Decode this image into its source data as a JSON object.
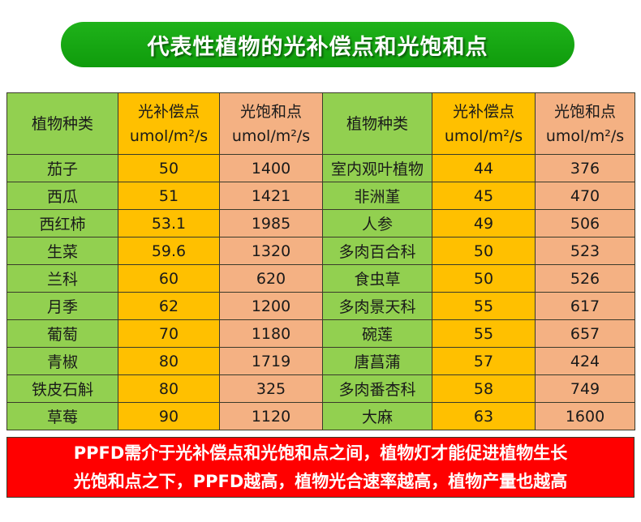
{
  "title": "代表性植物的光补偿点和光饱和点",
  "headers": {
    "plant": "植物种类",
    "compensation": "光补偿点",
    "saturation": "光饱和点",
    "unit": "umol/m²/s"
  },
  "left_rows": [
    {
      "plant": "茄子",
      "compensation": "50",
      "saturation": "1400"
    },
    {
      "plant": "西瓜",
      "compensation": "51",
      "saturation": "1421"
    },
    {
      "plant": "西红柿",
      "compensation": "53.1",
      "saturation": "1985"
    },
    {
      "plant": "生菜",
      "compensation": "59.6",
      "saturation": "1320"
    },
    {
      "plant": "兰科",
      "compensation": "60",
      "saturation": "620"
    },
    {
      "plant": "月季",
      "compensation": "62",
      "saturation": "1200"
    },
    {
      "plant": "葡萄",
      "compensation": "70",
      "saturation": "1180"
    },
    {
      "plant": "青椒",
      "compensation": "80",
      "saturation": "1719"
    },
    {
      "plant": "铁皮石斛",
      "compensation": "80",
      "saturation": "325"
    },
    {
      "plant": "草莓",
      "compensation": "90",
      "saturation": "1120"
    }
  ],
  "right_rows": [
    {
      "plant": "室内观叶植物",
      "compensation": "44",
      "saturation": "376"
    },
    {
      "plant": "非洲堇",
      "compensation": "45",
      "saturation": "470"
    },
    {
      "plant": "人参",
      "compensation": "49",
      "saturation": "506"
    },
    {
      "plant": "多肉百合科",
      "compensation": "50",
      "saturation": "523"
    },
    {
      "plant": "食虫草",
      "compensation": "50",
      "saturation": "526"
    },
    {
      "plant": "多肉景天科",
      "compensation": "55",
      "saturation": "617"
    },
    {
      "plant": "碗莲",
      "compensation": "55",
      "saturation": "657"
    },
    {
      "plant": "唐菖蒲",
      "compensation": "57",
      "saturation": "424"
    },
    {
      "plant": "多肉番杏科",
      "compensation": "58",
      "saturation": "749"
    },
    {
      "plant": "大麻",
      "compensation": "63",
      "saturation": "1600"
    }
  ],
  "note": {
    "line1": "PPFD需介于光补偿点和光饱和点之间，植物灯才能促进植物生长",
    "line2": "光饱和点之下，PPFD越高，植物光合速率越高，植物产量也越高"
  },
  "colors": {
    "title_bg": "#14a811",
    "plant_col": "#92d050",
    "compensation_col": "#ffc000",
    "saturation_col": "#f4b183",
    "note_bg": "#ff0000"
  }
}
